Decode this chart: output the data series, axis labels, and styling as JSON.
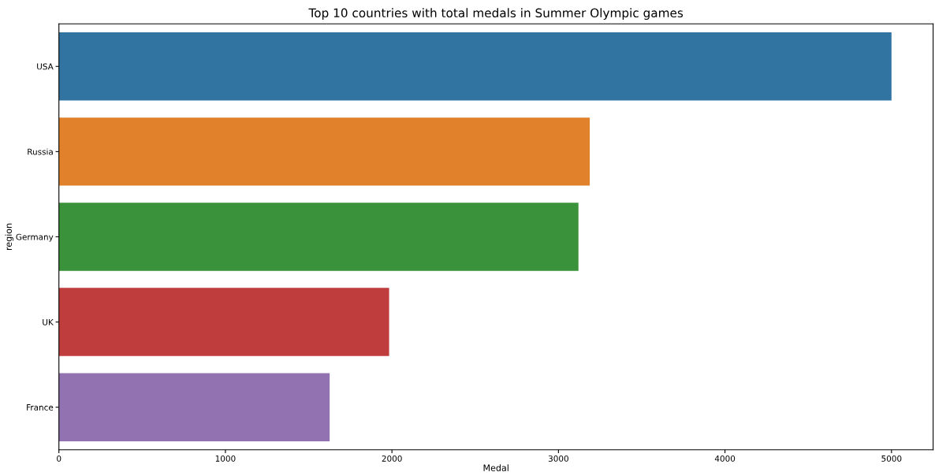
{
  "chart_data": {
    "type": "bar",
    "orientation": "horizontal",
    "title": "Top 10 countries with total medals in Summer Olympic games",
    "xlabel": "Medal",
    "ylabel": "region",
    "categories": [
      "USA",
      "Russia",
      "Germany",
      "UK",
      "France"
    ],
    "values": [
      5000,
      3188,
      3120,
      1983,
      1626
    ],
    "colors": [
      "#3274a1",
      "#e1812c",
      "#3a923a",
      "#c03d3e",
      "#9372b2"
    ],
    "xlim": [
      0,
      5250
    ],
    "xticks": [
      0,
      1000,
      2000,
      3000,
      4000,
      5000
    ],
    "grid": false
  }
}
